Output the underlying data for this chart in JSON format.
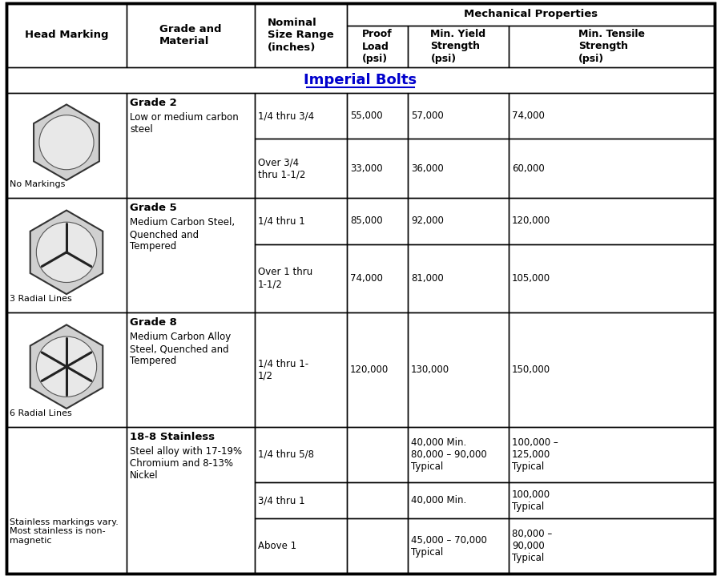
{
  "title": "Imperial Bolts",
  "title_color": "#0000cc",
  "bg_color": "#ffffff",
  "rows": [
    {
      "grade_bold": "Grade 2",
      "grade_text": "Low or medium carbon\nsteel",
      "sub_rows": [
        {
          "size": "1/4 thru 3/4",
          "proof": "55,000",
          "yield": "57,000",
          "tensile": "74,000"
        },
        {
          "size": "Over 3/4\nthru 1-1/2",
          "proof": "33,000",
          "yield": "36,000",
          "tensile": "60,000"
        }
      ],
      "marking_label": "No Markings",
      "marking_type": "plain_hex"
    },
    {
      "grade_bold": "Grade 5",
      "grade_text": "Medium Carbon Steel,\nQuenched and\nTempered",
      "sub_rows": [
        {
          "size": "1/4 thru 1",
          "proof": "85,000",
          "yield": "92,000",
          "tensile": "120,000"
        },
        {
          "size": "Over 1 thru\n1-1/2",
          "proof": "74,000",
          "yield": "81,000",
          "tensile": "105,000"
        }
      ],
      "marking_label": "3 Radial Lines",
      "marking_type": "hex_3lines"
    },
    {
      "grade_bold": "Grade 8",
      "grade_text": "Medium Carbon Alloy\nSteel, Quenched and\nTempered",
      "sub_rows": [
        {
          "size": "1/4 thru 1-\n1/2",
          "proof": "120,000",
          "yield": "130,000",
          "tensile": "150,000"
        }
      ],
      "marking_label": "6 Radial Lines",
      "marking_type": "hex_6lines"
    },
    {
      "grade_bold": "18-8 Stainless",
      "grade_text": "Steel alloy with 17-19%\nChromium and 8-13%\nNickel",
      "sub_rows": [
        {
          "size": "1/4 thru 5/8",
          "proof": "",
          "yield": "40,000 Min.\n80,000 – 90,000\nTypical",
          "tensile": "100,000 –\n125,000\nTypical"
        },
        {
          "size": "3/4 thru 1",
          "proof": "",
          "yield": "40,000 Min.",
          "tensile": "100,000\nTypical"
        },
        {
          "size": "Above 1",
          "proof": "",
          "yield": "45,000 – 70,000\nTypical",
          "tensile": "80,000 –\n90,000\nTypical"
        }
      ],
      "marking_label": "Stainless markings vary.\nMost stainless is non-\nmagnetic",
      "marking_type": "stainless"
    }
  ]
}
